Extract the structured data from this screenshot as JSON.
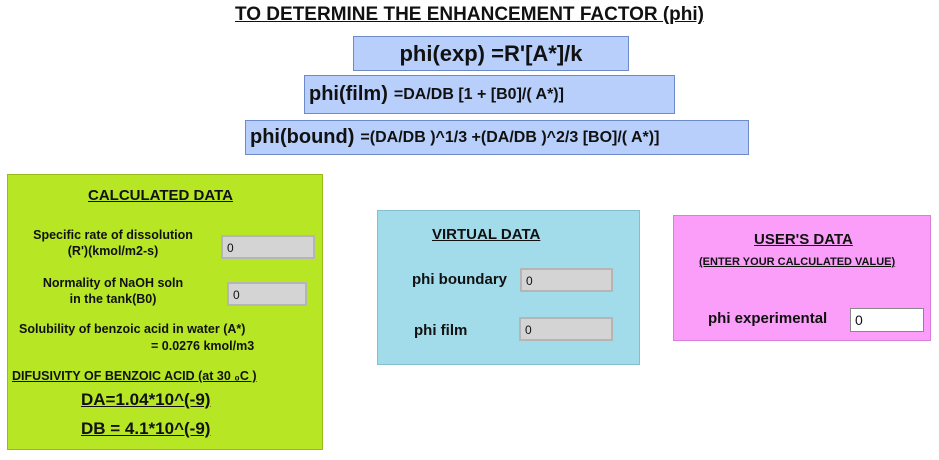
{
  "title": "TO DETERMINE THE  ENHANCEMENT FACTOR (phi)",
  "formulas": {
    "exp": "phi(exp)  =R'[A*]/k",
    "film_lhs": "phi(film)",
    "film_rhs": "=DA/DB [1 + [B0]/( A*)]",
    "bound_lhs": "phi(bound)",
    "bound_rhs": "=(DA/DB )^1/3 +(DA/DB )^2/3 [BO]/( A*)]"
  },
  "calculated": {
    "heading": "CALCULATED DATA",
    "rate_label_1": "Specific rate of dissolution",
    "rate_label_2": "(R')(kmol/m2-s)",
    "rate_value": "0",
    "naoh_label_1": "Normality of NaOH soln",
    "naoh_label_2": "in the tank(B0)",
    "naoh_value": "0",
    "solubility_1": "Solubility of benzoic acid in water (A*)",
    "solubility_2": "= 0.0276 kmol/m3",
    "diffusivity_heading": "DIFUSIVITY OF BENZOIC ACID  (at 30 ₀C )",
    "da": "DA=1.04*10^(-9)",
    "db": "DB = 4.1*10^(-9)"
  },
  "virtual": {
    "heading": "VIRTUAL DATA",
    "boundary_label": "phi boundary",
    "boundary_value": "0",
    "film_label": "phi film",
    "film_value": "0"
  },
  "user": {
    "heading": "USER'S DATA",
    "subheading": "(ENTER YOUR CALCULATED  VALUE)",
    "exp_label": "phi experimental",
    "exp_value": "0"
  }
}
